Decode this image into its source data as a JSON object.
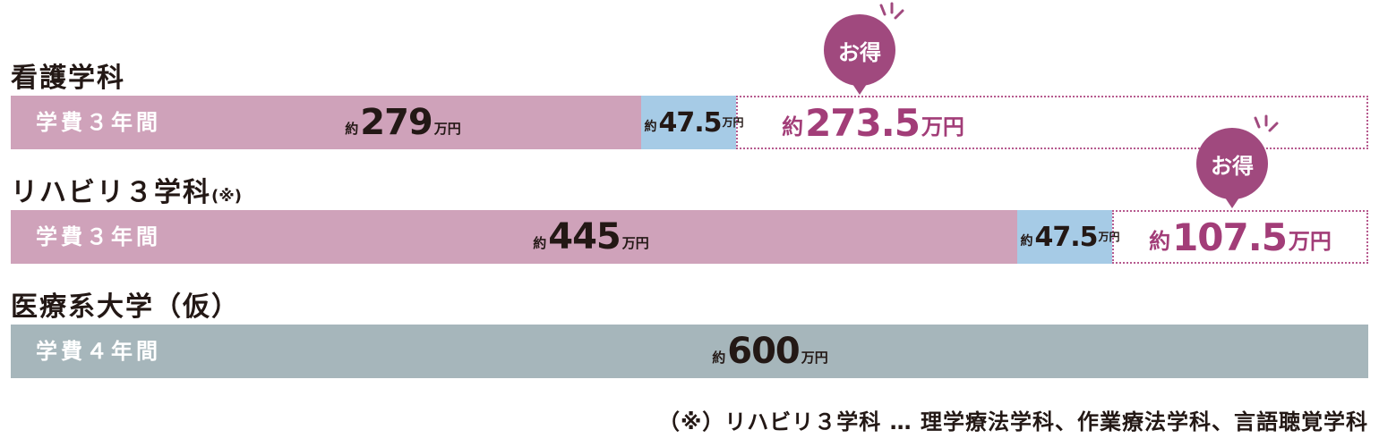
{
  "groups": [
    {
      "title": "看護学科",
      "title_note": "",
      "bar_label": "学費３年間",
      "fee": {
        "prefix": "約",
        "value": "279",
        "unit": "万円"
      },
      "extra": {
        "prefix": "約",
        "value": "47.5",
        "unit": "万円"
      },
      "savings": {
        "prefix": "約",
        "value": "273.5",
        "unit": "万円"
      },
      "badge": "お得"
    },
    {
      "title": "リハビリ３学科",
      "title_note": "(※)",
      "bar_label": "学費３年間",
      "fee": {
        "prefix": "約",
        "value": "445",
        "unit": "万円"
      },
      "extra": {
        "prefix": "約",
        "value": "47.5",
        "unit": "万円"
      },
      "savings": {
        "prefix": "約",
        "value": "107.5",
        "unit": "万円"
      },
      "badge": "お得"
    },
    {
      "title": "医療系大学（仮）",
      "title_note": "",
      "bar_label": "学費４年間",
      "fee": {
        "prefix": "約",
        "value": "600",
        "unit": "万円"
      }
    }
  ],
  "footnote": "（※）リハビリ３学科 … 理学療法学科、作業療法学科、言語聴覚学科",
  "colors": {
    "tuition": "#cfa2ba",
    "extra": "#a6cbe6",
    "university": "#a6b6bb",
    "savings": "#a23d78",
    "badge": "#a0497e"
  },
  "chart_data": {
    "type": "bar",
    "orientation": "horizontal",
    "stacked": true,
    "unit": "万円",
    "categories": [
      "看護学科",
      "リハビリ３学科",
      "医療系大学（仮）"
    ],
    "series": [
      {
        "values": [
          279,
          445,
          600
        ]
      },
      {
        "values": [
          47.5,
          47.5,
          0
        ]
      },
      {
        "name": "お得",
        "values": [
          273.5,
          107.5,
          0
        ]
      }
    ],
    "xlim": [
      0,
      600
    ],
    "grid": false
  }
}
